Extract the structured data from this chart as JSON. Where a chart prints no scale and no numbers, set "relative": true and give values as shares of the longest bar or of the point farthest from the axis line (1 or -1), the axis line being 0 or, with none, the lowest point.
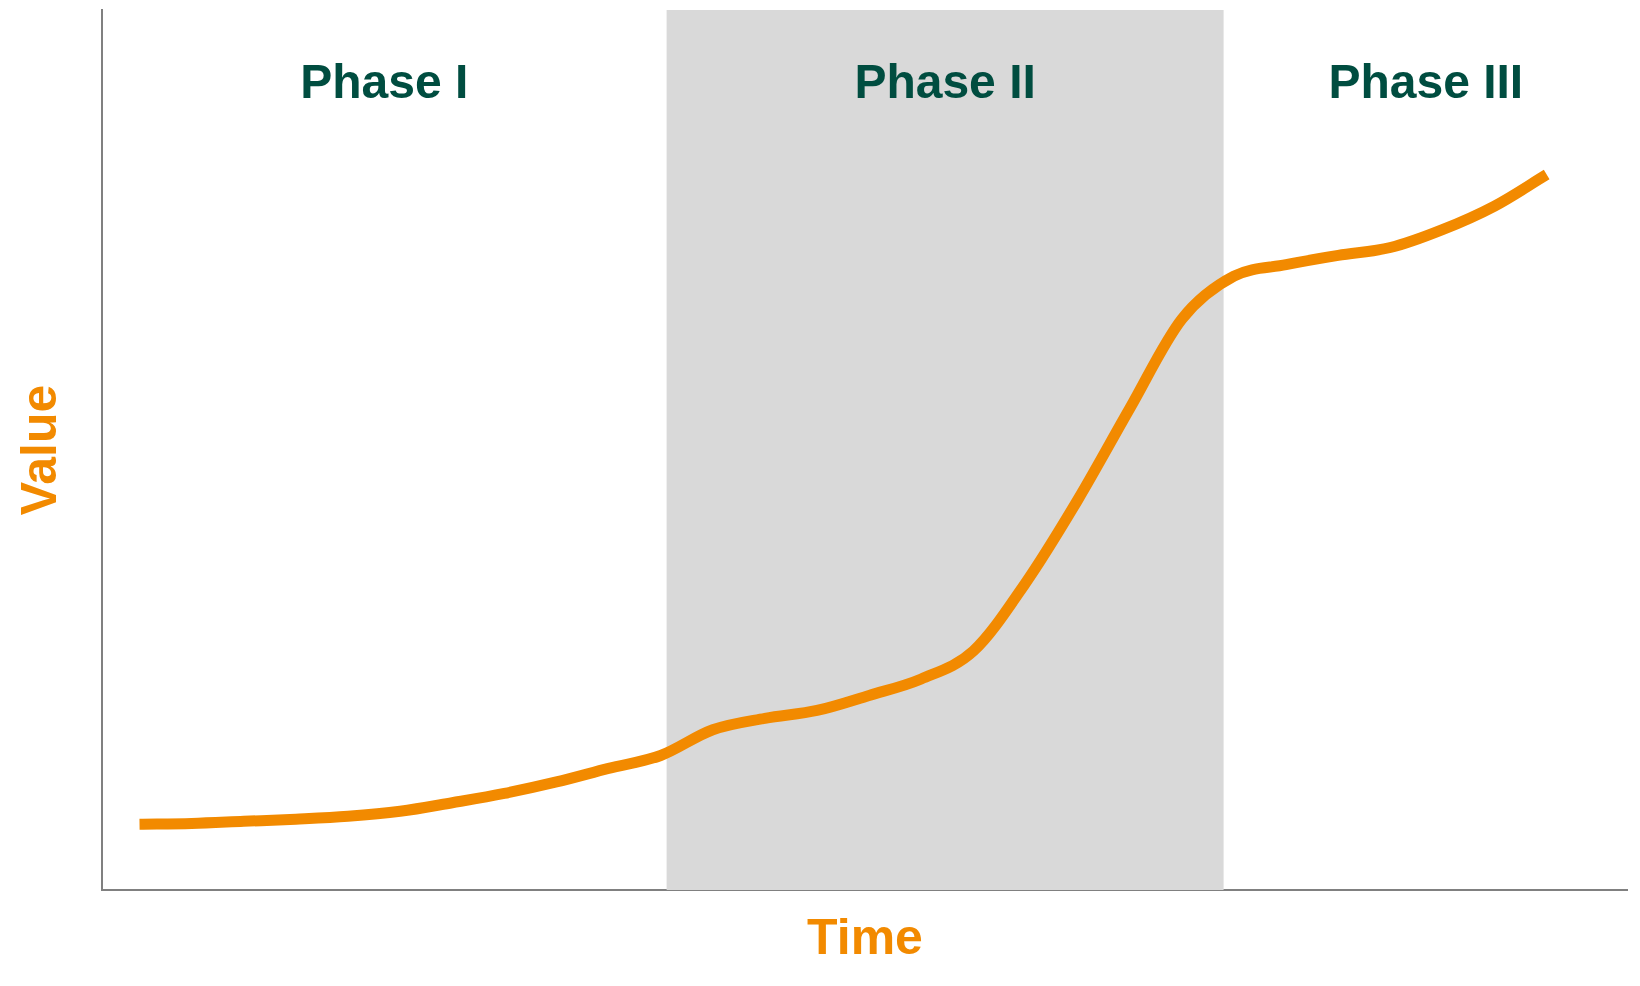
{
  "chart_data": {
    "type": "line",
    "relative": true,
    "xlabel": "Time",
    "ylabel": "Value",
    "categories": [
      null,
      null,
      null,
      null,
      null,
      null,
      null,
      null,
      null,
      null,
      null,
      null,
      null,
      null,
      null,
      null,
      null,
      null,
      null,
      null,
      null,
      null,
      null,
      null,
      null,
      null,
      null,
      null
    ],
    "series": [
      {
        "color": "#f28a00",
        "values": [
          0.092,
          0.093,
          0.096,
          0.099,
          0.103,
          0.11,
          0.122,
          0.135,
          0.151,
          0.17,
          0.188,
          0.224,
          0.24,
          0.251,
          0.272,
          0.295,
          0.334,
          0.429,
          0.545,
          0.673,
          0.798,
          0.858,
          0.874,
          0.887,
          0.898,
          0.923,
          0.956,
          1.0
        ]
      }
    ],
    "annotations": [
      "Phase I",
      "Phase II",
      "Phase III"
    ],
    "grid": false,
    "legend": false,
    "marker": "none",
    "line_style": "solid"
  }
}
